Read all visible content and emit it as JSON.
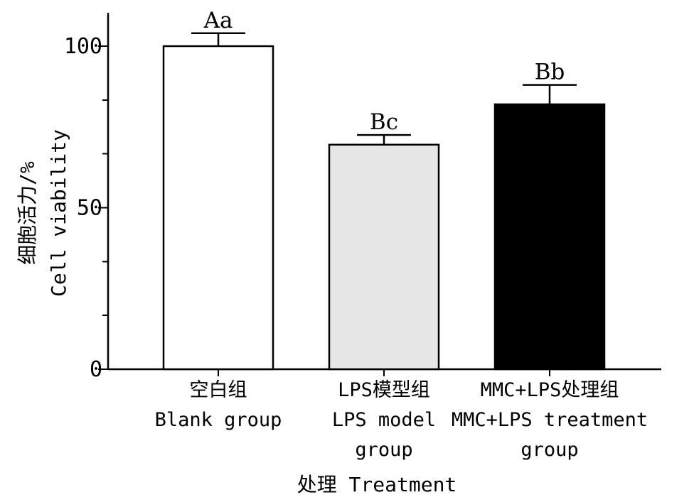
{
  "chart_data": {
    "type": "bar",
    "title": "",
    "xlabel": "处理 Treatment",
    "ylabel_lines": [
      "细胞活力/%",
      "Cell viability"
    ],
    "ylim": [
      0,
      110
    ],
    "yticks": [
      0,
      50,
      100
    ],
    "yminor_ticks": [
      0,
      16.7,
      33.3,
      50,
      66.7,
      83.3,
      100
    ],
    "categories": [
      [
        "空白组",
        "Blank group"
      ],
      [
        "LPS模型组",
        "LPS model",
        "group"
      ],
      [
        "MMC+LPS处理组",
        "MMC+LPS treatment",
        "group"
      ]
    ],
    "values": [
      100,
      69.5,
      82
    ],
    "errors": [
      4,
      3,
      6
    ],
    "significance_labels": [
      "Aa",
      "Bc",
      "Bb"
    ],
    "bar_colors": [
      "#ffffff",
      "#e6e6e6",
      "#000000"
    ],
    "grid": false
  }
}
